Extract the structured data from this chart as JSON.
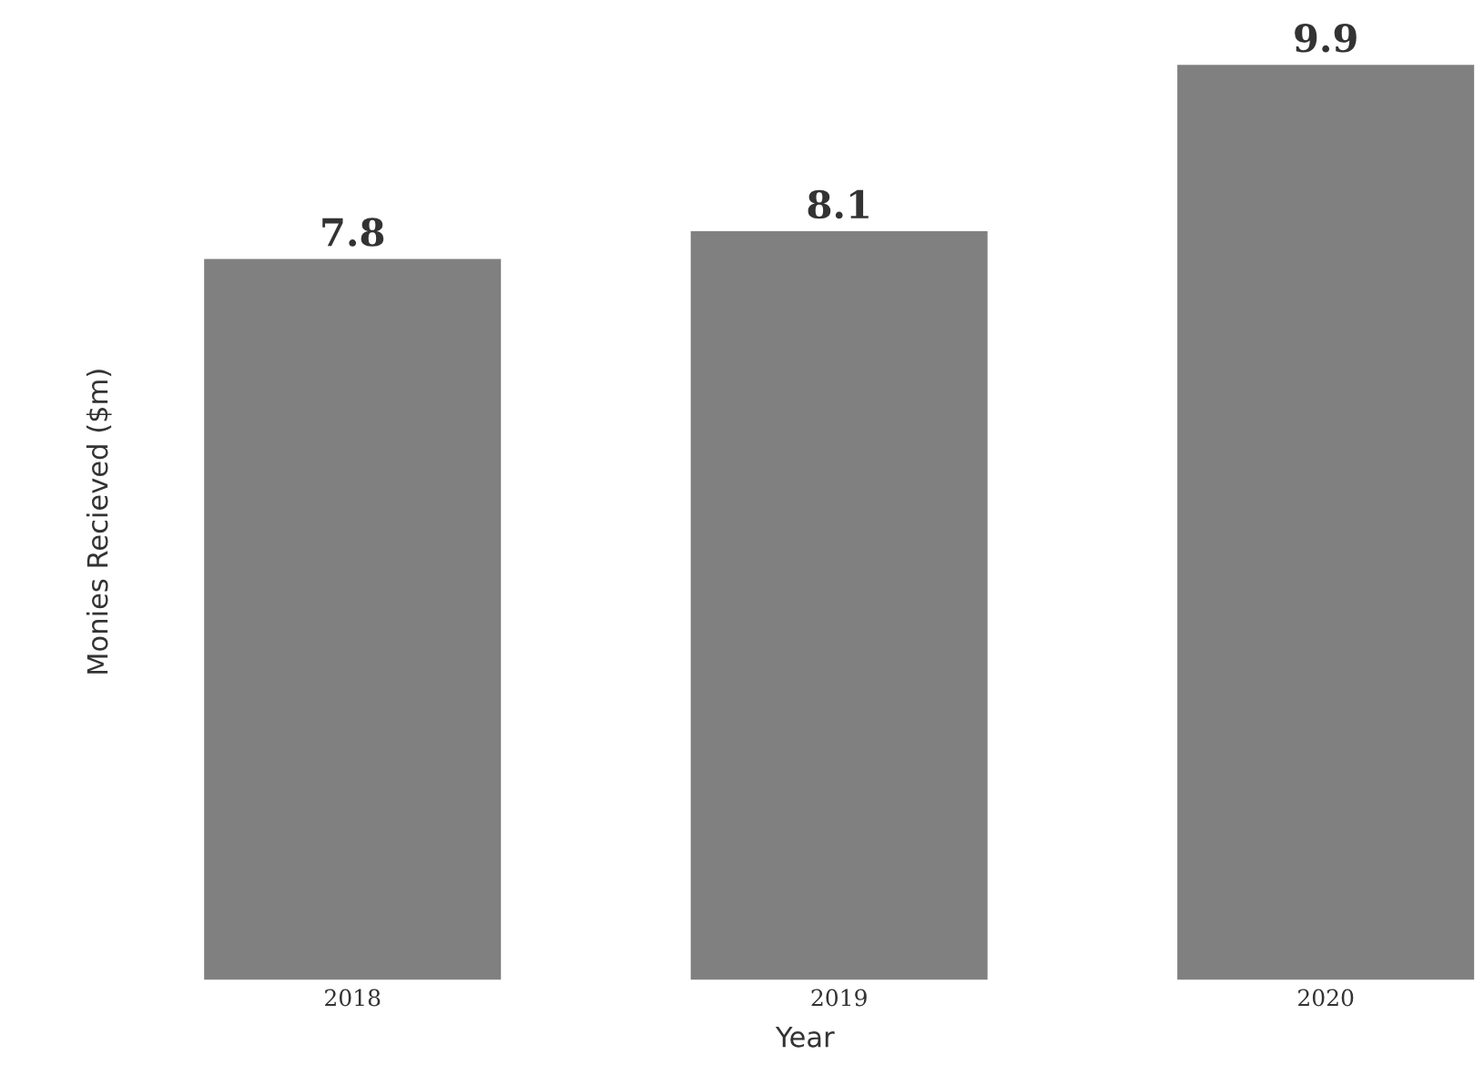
{
  "chart_data": {
    "type": "bar",
    "xlabel": "Year",
    "ylabel": "Monies Recieved ($m)",
    "categories": [
      "2018",
      "2019",
      "2020"
    ],
    "values": [
      7.8,
      8.1,
      9.9
    ],
    "color": "#808080",
    "data_labels": true
  }
}
